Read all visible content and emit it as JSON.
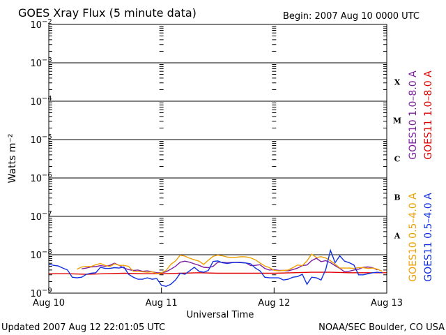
{
  "title": "GOES Xray Flux (5 minute data)",
  "begin_label": "Begin:  2007 Aug 10 0000 UTC",
  "updated_label": "Updated 2007 Aug 12 22:01:05 UTC",
  "credit_label": "NOAA/SEC Boulder, CO USA",
  "colors": {
    "goes10_long": "#7f1fa0",
    "goes11_long": "#e00000",
    "goes10_short": "#f0a000",
    "goes11_short": "#1030e0",
    "axes": "#000000"
  },
  "chart_data": {
    "type": "line",
    "title": "GOES Xray Flux (5 minute data)",
    "xlabel": "Universal Time",
    "ylabel": "Watts m⁻²",
    "y_scale": "log",
    "ylim": [
      1e-09,
      0.01
    ],
    "xlim": [
      0,
      72
    ],
    "x_unit": "hours since 2007 Aug 10 0000 UTC",
    "x_ticks": [
      {
        "x": 0,
        "label": "Aug 10"
      },
      {
        "x": 24,
        "label": "Aug 11"
      },
      {
        "x": 48,
        "label": "Aug 12"
      },
      {
        "x": 72,
        "label": "Aug 13"
      }
    ],
    "y_ticks": [
      {
        "exp": -2,
        "base": "10",
        "sup": "−2"
      },
      {
        "exp": -3,
        "base": "10",
        "sup": "−3"
      },
      {
        "exp": -4,
        "base": "10",
        "sup": "−4"
      },
      {
        "exp": -5,
        "base": "10",
        "sup": "−5"
      },
      {
        "exp": -6,
        "base": "10",
        "sup": "−6"
      },
      {
        "exp": -7,
        "base": "10",
        "sup": "−7"
      },
      {
        "exp": -8,
        "base": "10",
        "sup": "−8"
      },
      {
        "exp": -9,
        "base": "10",
        "sup": "−9"
      }
    ],
    "flare_classes": [
      {
        "label": "X",
        "exp": -3.5
      },
      {
        "label": "M",
        "exp": -4.5
      },
      {
        "label": "C",
        "exp": -5.5
      },
      {
        "label": "B",
        "exp": -6.5
      },
      {
        "label": "A",
        "exp": -7.5
      }
    ],
    "grid": true,
    "legend": [
      {
        "name": "GOES10 1.0–8.0 A",
        "color": "#7f1fa0"
      },
      {
        "name": "GOES11 1.0–8.0 A",
        "color": "#e00000"
      },
      {
        "name": "GOES10 0.5–4.0 A",
        "color": "#f0a000"
      },
      {
        "name": "GOES11 0.5–4.0 A",
        "color": "#1030e0"
      }
    ],
    "legend_placement": "right, rotated vertical",
    "series": [
      {
        "name": "GOES11 1.0–8.0 A",
        "color": "#e00000",
        "x": [
          0,
          4,
          8,
          12,
          16,
          20,
          24,
          28,
          32,
          36,
          40,
          44,
          48,
          52,
          56,
          60,
          64,
          68,
          72
        ],
        "y": [
          3.2e-09,
          3.2e-09,
          3.1e-09,
          3.2e-09,
          3.3e-09,
          3.2e-09,
          3.2e-09,
          3.3e-09,
          3.4e-09,
          3.3e-09,
          3.3e-09,
          3.3e-09,
          3.3e-09,
          3.4e-09,
          3.5e-09,
          3.5e-09,
          3.4e-09,
          3.4e-09,
          3.4e-09
        ]
      },
      {
        "name": "GOES10 1.0–8.0 A",
        "color": "#7f1fa0",
        "x": [
          7,
          8,
          9,
          10,
          11,
          12,
          13,
          14,
          15,
          16,
          17,
          18,
          19,
          20,
          21,
          22,
          23,
          24,
          25,
          26,
          27,
          28,
          29,
          30,
          31,
          32,
          33,
          34,
          35,
          36,
          37,
          38,
          39,
          40,
          41,
          42,
          43,
          44,
          45,
          46,
          47,
          48,
          49,
          50,
          51,
          52,
          53,
          54,
          55,
          56,
          57,
          58,
          59,
          60,
          61,
          62,
          63,
          64,
          65,
          66,
          67,
          68,
          69,
          70
        ],
        "y": [
          4.3e-09,
          4.5e-09,
          4.8e-09,
          4.9e-09,
          5.2e-09,
          5e-09,
          5.3e-09,
          6e-09,
          5.3e-09,
          4.5e-09,
          4.1e-09,
          3.9e-09,
          4e-09,
          3.7e-09,
          3.8e-09,
          3.6e-09,
          3.4e-09,
          3.4e-09,
          3.6e-09,
          4.2e-09,
          5e-09,
          6.4e-09,
          6.8e-09,
          6.4e-09,
          5.8e-09,
          5.3e-09,
          4.7e-09,
          4.6e-09,
          5e-09,
          6.4e-09,
          6.4e-09,
          6.2e-09,
          6.3e-09,
          6.3e-09,
          6.2e-09,
          6.1e-09,
          5.2e-09,
          5.3e-09,
          5.5e-09,
          4.4e-09,
          4e-09,
          4.1e-09,
          3.9e-09,
          3.9e-09,
          3.8e-09,
          4.1e-09,
          4.5e-09,
          5.2e-09,
          5.4e-09,
          7e-09,
          8.1e-09,
          6.6e-09,
          7e-09,
          6.2e-09,
          5.2e-09,
          4.4e-09,
          3.6e-09,
          3.7e-09,
          4e-09,
          4.2e-09,
          4.7e-09,
          4.8e-09,
          4.6e-09,
          4e-09
        ]
      },
      {
        "name": "GOES10 0.5–4.0 A",
        "color": "#f0a000",
        "x": [
          6,
          7,
          8,
          9,
          10,
          11,
          12,
          13,
          14,
          15,
          16,
          17,
          18,
          19,
          20,
          21,
          22,
          23,
          24,
          25,
          26,
          27,
          28,
          29,
          30,
          31,
          32,
          33,
          34,
          35,
          36,
          37,
          38,
          39,
          40,
          41,
          42,
          43,
          44,
          45,
          46,
          47,
          48,
          49,
          50,
          51,
          52,
          53,
          54,
          55,
          56,
          57,
          58,
          59,
          60,
          61,
          62,
          63,
          64,
          65,
          66,
          67,
          68,
          69,
          70,
          71
        ],
        "y": [
          4.2e-09,
          4.8e-09,
          5e-09,
          4.9e-09,
          5.5e-09,
          5.9e-09,
          5.3e-09,
          4.9e-09,
          5.8e-09,
          5.3e-09,
          5.3e-09,
          5e-09,
          3.7e-09,
          3.7e-09,
          3.6e-09,
          3.5e-09,
          3.6e-09,
          3.2e-09,
          3.4e-09,
          3.9e-09,
          5.6e-09,
          6.9e-09,
          9.7e-09,
          9.2e-09,
          8.1e-09,
          7.4e-09,
          6.8e-09,
          5.6e-09,
          7.2e-09,
          9.1e-09,
          9.8e-09,
          9.4e-09,
          8.7e-09,
          8.5e-09,
          8.6e-09,
          8.9e-09,
          8.8e-09,
          8.3e-09,
          7.4e-09,
          6.1e-09,
          5.1e-09,
          4.6e-09,
          3.9e-09,
          3.8e-09,
          3.9e-09,
          4e-09,
          4.6e-09,
          5.4e-09,
          5.2e-09,
          6.9e-09,
          1.04e-08,
          8.5e-09,
          8.9e-09,
          8.2e-09,
          7e-09,
          5.7e-09,
          4.5e-09,
          4.5e-09,
          4.5e-09,
          4.4e-09,
          4.6e-09,
          4.6e-09,
          4.4e-09,
          4.5e-09,
          4.2e-09,
          3.7e-09
        ]
      },
      {
        "name": "GOES11 0.5–4.0 A",
        "color": "#1030e0",
        "x": [
          0,
          1,
          2,
          3,
          4,
          5,
          6,
          7,
          8,
          9,
          10,
          11,
          12,
          13,
          14,
          15,
          16,
          17,
          18,
          19,
          20,
          21,
          22,
          23,
          24,
          25,
          26,
          27,
          28,
          29,
          30,
          31,
          32,
          33,
          34,
          35,
          36,
          37,
          38,
          39,
          40,
          41,
          42,
          43,
          44,
          45,
          46,
          47,
          48,
          49,
          50,
          51,
          52,
          53,
          54,
          55,
          56,
          57,
          58,
          59,
          60,
          61,
          62,
          63,
          64,
          65,
          66,
          67,
          68,
          69,
          70,
          71
        ],
        "y": [
          5.7e-09,
          5.3e-09,
          5.1e-09,
          4.5e-09,
          4e-09,
          2.6e-09,
          2.5e-09,
          2.6e-09,
          3.1e-09,
          3.3e-09,
          3.4e-09,
          4.7e-09,
          4.4e-09,
          4.4e-09,
          4.6e-09,
          4.5e-09,
          4.8e-09,
          3.1e-09,
          2.6e-09,
          2.3e-09,
          2.3e-09,
          2.5e-09,
          2.3e-09,
          2.4e-09,
          1.6e-09,
          1.5e-09,
          1.7e-09,
          2.2e-09,
          3.3e-09,
          3.1e-09,
          3.8e-09,
          4.7e-09,
          3.7e-09,
          3.5e-09,
          3.9e-09,
          6.7e-09,
          6.9e-09,
          6.2e-09,
          5.9e-09,
          6.2e-09,
          6.4e-09,
          6.3e-09,
          6.1e-09,
          5.8e-09,
          4.5e-09,
          3.8e-09,
          2.6e-09,
          2.5e-09,
          2.5e-09,
          2.5e-09,
          2.2e-09,
          2.3e-09,
          2.6e-09,
          2.7e-09,
          3.1e-09,
          1.7e-09,
          2.6e-09,
          2.5e-09,
          2.2e-09,
          4.1e-09,
          1.3e-08,
          6.2e-09,
          9.4e-09,
          6.8e-09,
          6.2e-09,
          5.4e-09,
          3e-09,
          3e-09,
          3.2e-09,
          3.4e-09,
          3.5e-09,
          3.4e-09
        ]
      }
    ]
  }
}
